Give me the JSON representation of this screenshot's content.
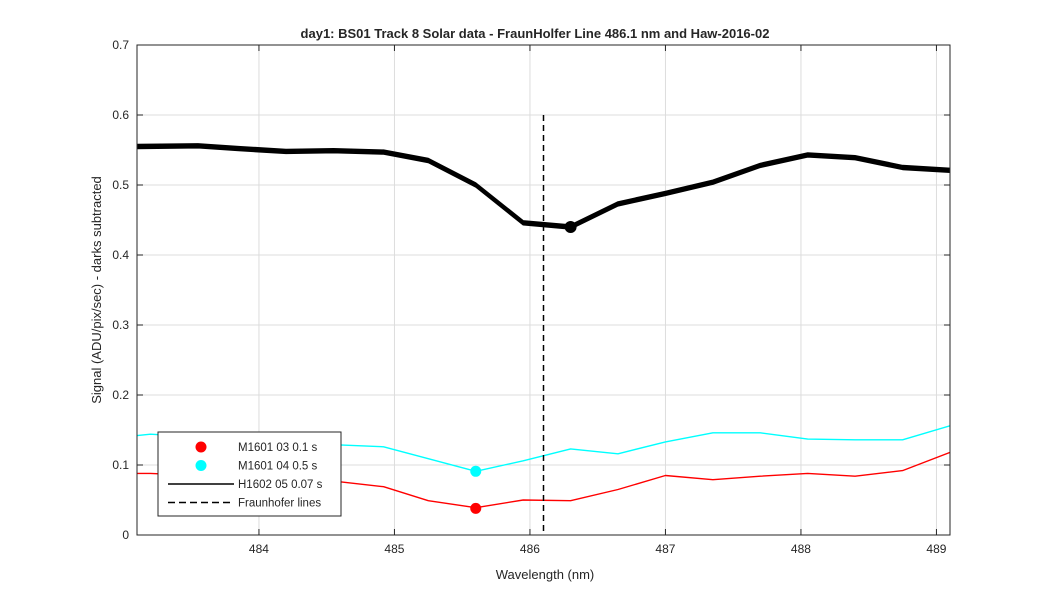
{
  "chart_data": {
    "type": "line",
    "title": "day1: BS01  Track 8 Solar data - FraunHolfer Line 486.1 nm and Haw-2016-02",
    "xlabel": "Wavelength (nm)",
    "ylabel": "Signal (ADU/pix/sec) - darks subtracted",
    "xlim": [
      483.1,
      489.1
    ],
    "ylim": [
      0,
      0.7
    ],
    "xticks": [
      484,
      485,
      486,
      487,
      488,
      489
    ],
    "yticks": [
      0,
      0.1,
      0.2,
      0.3,
      0.4,
      0.5,
      0.6,
      0.7
    ],
    "xtick_labels": [
      "484",
      "485",
      "486",
      "487",
      "488",
      "489"
    ],
    "ytick_labels": [
      "0",
      "0.1",
      "0.2",
      "0.3",
      "0.4",
      "0.5",
      "0.6",
      "0.7"
    ],
    "grid": true,
    "legend_position": "bottom-left",
    "legend": [
      {
        "label": "M1601 03 0.1 s",
        "style": "marker",
        "color": "#ff0000"
      },
      {
        "label": "M1601 04 0.5 s",
        "style": "marker",
        "color": "#00ffff"
      },
      {
        "label": "H1602 05 0.07 s",
        "style": "solid",
        "color": "#000000"
      },
      {
        "label": "Fraunhofer lines",
        "style": "dashed",
        "color": "#000000"
      }
    ],
    "series": [
      {
        "color": "#000000",
        "x": [
          483.1,
          483.55,
          483.85,
          484.2,
          484.55,
          484.92,
          485.25,
          485.6,
          485.95,
          486.3,
          486.65,
          487.0,
          487.35,
          487.7,
          488.05,
          488.4,
          488.75,
          489.1
        ],
        "values": [
          0.555,
          0.556,
          0.552,
          0.548,
          0.549,
          0.547,
          0.535,
          0.5,
          0.446,
          0.44,
          0.473,
          0.488,
          0.504,
          0.528,
          0.543,
          0.539,
          0.525,
          0.521
        ],
        "markers": [
          {
            "x": 486.3,
            "y": 0.44
          }
        ]
      },
      {
        "color": "#00ffff",
        "x": [
          483.1,
          483.2,
          483.55,
          483.85,
          484.2,
          484.55,
          484.92,
          485.25,
          485.6,
          485.95,
          486.3,
          486.65,
          487.0,
          487.35,
          487.7,
          488.05,
          488.4,
          488.75,
          489.1
        ],
        "values": [
          0.142,
          0.144,
          0.14,
          0.133,
          0.129,
          0.129,
          0.126,
          0.109,
          0.091,
          0.106,
          0.123,
          0.116,
          0.133,
          0.146,
          0.146,
          0.137,
          0.136,
          0.136,
          0.156
        ],
        "markers": [
          {
            "x": 485.6,
            "y": 0.091
          }
        ]
      },
      {
        "color": "#ff0000",
        "x": [
          483.1,
          483.2,
          483.55,
          483.85,
          484.2,
          484.55,
          484.92,
          485.25,
          485.6,
          485.95,
          486.3,
          486.65,
          487.0,
          487.35,
          487.7,
          488.05,
          488.4,
          488.75,
          489.1
        ],
        "values": [
          0.088,
          0.088,
          0.085,
          0.083,
          0.08,
          0.077,
          0.069,
          0.049,
          0.039,
          0.05,
          0.049,
          0.065,
          0.085,
          0.079,
          0.084,
          0.088,
          0.084,
          0.092,
          0.118
        ],
        "markers": [
          {
            "x": 485.6,
            "y": 0.038
          }
        ]
      }
    ],
    "vlines": [
      {
        "x": 486.1,
        "ymin": 0,
        "ymax": 0.6,
        "style": "dashed",
        "color": "#000000"
      }
    ]
  }
}
